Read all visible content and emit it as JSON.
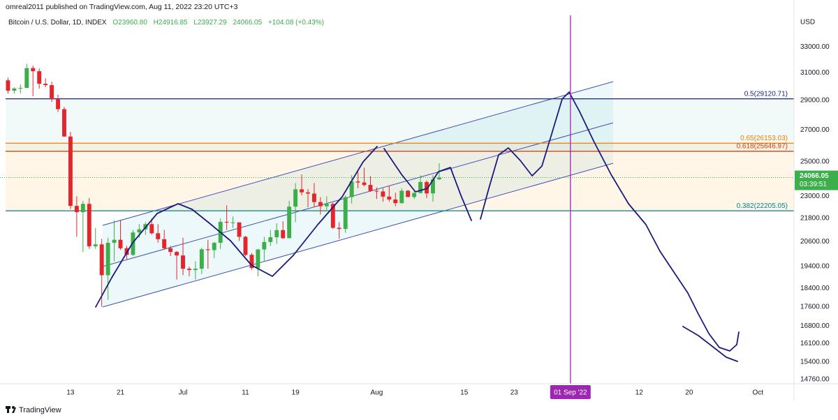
{
  "header": {
    "author_line": "omreal2011 published on TradingView.com, Aug 11, 2022 23:20 UTC+3"
  },
  "footer": {
    "brand": "TradingView"
  },
  "chart_data": {
    "type": "candlestick",
    "symbol": "Bitcoin / U.S. Dollar, 1D, INDEX",
    "legend": {
      "open": "O23960.80",
      "high": "H24916.85",
      "low": "L23927.29",
      "close": "24066.05",
      "change": "+104.08 (+0.43%)"
    },
    "currency": "USD",
    "log_scale": true,
    "grid": false,
    "up_color": "#3cae4a",
    "down_color": "#e3262b",
    "x": [
      "2022-06-03",
      "2022-06-04",
      "2022-06-05",
      "2022-06-06",
      "2022-06-07",
      "2022-06-08",
      "2022-06-09",
      "2022-06-10",
      "2022-06-11",
      "2022-06-12",
      "2022-06-13",
      "2022-06-14",
      "2022-06-15",
      "2022-06-16",
      "2022-06-17",
      "2022-06-18",
      "2022-06-19",
      "2022-06-20",
      "2022-06-21",
      "2022-06-22",
      "2022-06-23",
      "2022-06-24",
      "2022-06-25",
      "2022-06-26",
      "2022-06-27",
      "2022-06-28",
      "2022-06-29",
      "2022-06-30",
      "2022-07-01",
      "2022-07-02",
      "2022-07-03",
      "2022-07-04",
      "2022-07-05",
      "2022-07-06",
      "2022-07-07",
      "2022-07-08",
      "2022-07-09",
      "2022-07-10",
      "2022-07-11",
      "2022-07-12",
      "2022-07-13",
      "2022-07-14",
      "2022-07-15",
      "2022-07-16",
      "2022-07-17",
      "2022-07-18",
      "2022-07-19",
      "2022-07-20",
      "2022-07-21",
      "2022-07-22",
      "2022-07-23",
      "2022-07-24",
      "2022-07-25",
      "2022-07-26",
      "2022-07-27",
      "2022-07-28",
      "2022-07-29",
      "2022-07-30",
      "2022-07-31",
      "2022-08-01",
      "2022-08-02",
      "2022-08-03",
      "2022-08-04",
      "2022-08-05",
      "2022-08-06",
      "2022-08-07",
      "2022-08-08",
      "2022-08-09",
      "2022-08-10",
      "2022-08-11"
    ],
    "open": [
      30450,
      29700,
      29860,
      29900,
      31370,
      31130,
      30200,
      30100,
      29080,
      28400,
      26580,
      22470,
      22130,
      22580,
      20380,
      20470,
      19000,
      20550,
      20700,
      20280,
      19960,
      21070,
      21230,
      21500,
      21030,
      20730,
      20280,
      20100,
      19930,
      19300,
      19240,
      19300,
      20230,
      20190,
      20550,
      21620,
      21580,
      21590,
      20850,
      19960,
      19330,
      20220,
      20590,
      20830,
      21190,
      20780,
      22430,
      23390,
      23220,
      23150,
      22680,
      22450,
      22580,
      21310,
      21250,
      22950,
      23840,
      23780,
      23640,
      23300,
      23270,
      22980,
      22820,
      22620,
      23310,
      22960,
      23180,
      23810,
      23160,
      23960.8
    ],
    "high": [
      30650,
      29950,
      30150,
      31700,
      31550,
      31330,
      30600,
      30350,
      29400,
      28550,
      26880,
      23000,
      22750,
      22900,
      21300,
      20750,
      20800,
      21700,
      21700,
      20400,
      21200,
      21500,
      21600,
      21800,
      21500,
      21200,
      20400,
      20150,
      20800,
      19400,
      19650,
      20300,
      20700,
      20600,
      21800,
      22500,
      21900,
      21600,
      20900,
      20050,
      20250,
      20850,
      21200,
      21550,
      21650,
      22750,
      23750,
      24250,
      23400,
      23750,
      22950,
      23000,
      22650,
      21600,
      23050,
      24200,
      24400,
      24650,
      24150,
      23500,
      23450,
      23600,
      23200,
      23450,
      23350,
      23350,
      24200,
      23900,
      24200,
      24916.85
    ],
    "low": [
      29500,
      29500,
      29500,
      29900,
      29300,
      29850,
      29950,
      28900,
      28200,
      26560,
      22300,
      20850,
      20100,
      20250,
      20250,
      17600,
      17900,
      19650,
      20200,
      19750,
      19900,
      20800,
      20950,
      20950,
      20550,
      20200,
      19900,
      18800,
      19000,
      18950,
      18800,
      19050,
      19300,
      19800,
      20250,
      21200,
      21300,
      20650,
      19900,
      19250,
      18950,
      19650,
      20400,
      20500,
      20750,
      20780,
      21600,
      23050,
      22400,
      22400,
      22000,
      22250,
      21250,
      20750,
      21050,
      22600,
      23450,
      23550,
      23250,
      22850,
      22700,
      22700,
      22450,
      22600,
      22950,
      22850,
      23150,
      22900,
      22700,
      23927.29
    ],
    "close": [
      29700,
      29860,
      29900,
      31370,
      31130,
      30200,
      30100,
      29080,
      28400,
      26580,
      22470,
      22130,
      22580,
      20380,
      20470,
      19000,
      20550,
      20700,
      20280,
      19960,
      21070,
      21230,
      21500,
      21030,
      20730,
      20280,
      20100,
      19930,
      19300,
      19240,
      19300,
      20230,
      20190,
      20550,
      21620,
      21580,
      21590,
      20850,
      19960,
      19330,
      20220,
      20590,
      20830,
      21190,
      20780,
      22430,
      23390,
      23220,
      23150,
      22680,
      22450,
      22580,
      21310,
      21250,
      22950,
      23840,
      23780,
      23640,
      23300,
      23270,
      22980,
      22820,
      22620,
      23310,
      22960,
      23180,
      23810,
      23160,
      23960,
      24066.05
    ],
    "countdown": "03:39:51",
    "xlim": [
      "2022-06-02",
      "2022-10-07"
    ],
    "xticks": [
      {
        "value": "2022-06-13",
        "label": "13"
      },
      {
        "value": "2022-06-21",
        "label": "21"
      },
      {
        "value": "2022-07-01",
        "label": "Jul"
      },
      {
        "value": "2022-07-11",
        "label": "11"
      },
      {
        "value": "2022-07-19",
        "label": "19"
      },
      {
        "value": "2022-08-01",
        "label": "Aug"
      },
      {
        "value": "2022-08-15",
        "label": "15"
      },
      {
        "value": "2022-08-23",
        "label": "23"
      },
      {
        "value": "2022-09-12",
        "label": "12"
      },
      {
        "value": "2022-09-20",
        "label": "20"
      },
      {
        "value": "2022-10-01",
        "label": "Oct"
      }
    ],
    "ylim": [
      14610,
      35640
    ],
    "yticks": [
      {
        "value": 33000,
        "label": "33000.00"
      },
      {
        "value": 31000,
        "label": "31000.00"
      },
      {
        "value": 29000,
        "label": "29000.00"
      },
      {
        "value": 27000,
        "label": "27000.00"
      },
      {
        "value": 25000,
        "label": "25000.00"
      },
      {
        "value": 23000,
        "label": "23000.00"
      },
      {
        "value": 21800,
        "label": "21800.00"
      },
      {
        "value": 20600,
        "label": "20600.00"
      },
      {
        "value": 19400,
        "label": "19400.00"
      },
      {
        "value": 18400,
        "label": "18400.00"
      },
      {
        "value": 17600,
        "label": "17600.00"
      },
      {
        "value": 16800,
        "label": "16800.00"
      },
      {
        "value": 16100,
        "label": "16100.00"
      },
      {
        "value": 15400,
        "label": "15400.00"
      },
      {
        "value": 14760,
        "label": "14760.00"
      }
    ],
    "levels": [
      {
        "label": "0.5(29120.71)",
        "value": 29120.71,
        "color": "#1a237e"
      },
      {
        "label": "0.65(26153.03)",
        "value": 26153.03,
        "color": "#f57c00"
      },
      {
        "label": "0.618(25646.97)",
        "value": 25646.97,
        "color": "#d84315"
      },
      {
        "label": "0.382(22205.05)",
        "value": 22205.05,
        "color": "#00838f"
      }
    ],
    "cursor": {
      "date": "2022-09-01",
      "label": "01 Sep '22",
      "color": "#9c27b0"
    }
  }
}
